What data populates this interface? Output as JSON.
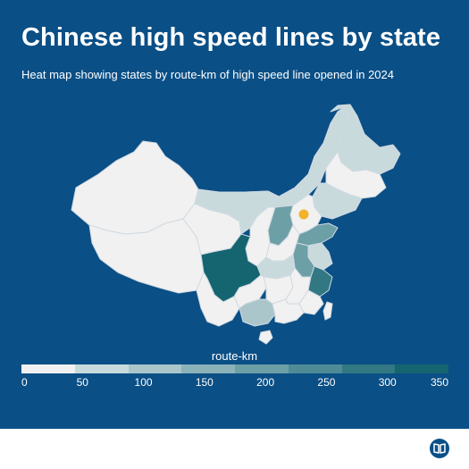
{
  "header": {
    "title": "Chinese high speed lines by state",
    "subtitle": "Heat map showing states by route-km of high speed line opened in 2024"
  },
  "legend": {
    "title": "route-km",
    "ticks": [
      "0",
      "50",
      "100",
      "150",
      "200",
      "250",
      "300",
      "350"
    ],
    "colors": [
      "#f1f1f1",
      "#c9dadd",
      "#aac6cb",
      "#8bb2b9",
      "#6d9fa7",
      "#4f8b95",
      "#317882",
      "#146570"
    ]
  },
  "colors": {
    "background": "#0a4f86",
    "capital_marker": "#f3b229",
    "border": "#d0d9e2"
  },
  "icons": {
    "capital": "star-dot",
    "logo": "book-icon"
  }
}
